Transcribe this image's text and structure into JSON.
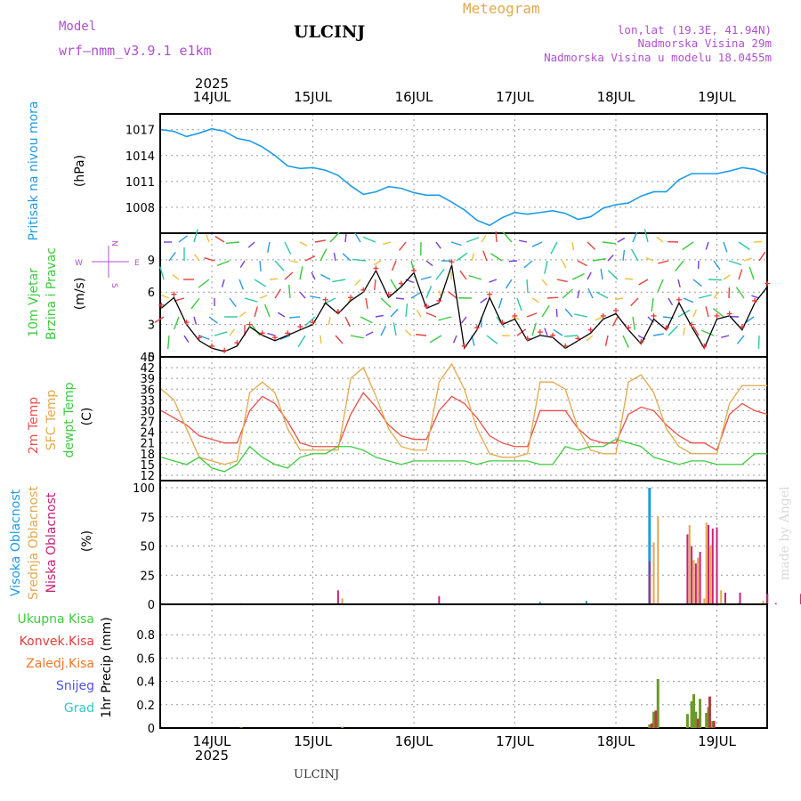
{
  "header": {
    "model_label": "Model",
    "model_name": "wrf–nmm_v3.9.1  e1km",
    "station": "ULCINJ",
    "product": "Meteogram",
    "coords": "lon,lat (19.3E, 41.94N)",
    "elevation": "Nadmorska Visina 29m",
    "model_elevation": "Nadmorska Visina u modelu 18.0455m"
  },
  "footer": {
    "station": "ULCINJ",
    "credit": "made by Angel"
  },
  "time_axis": {
    "year": "2025",
    "days": [
      "14JUL",
      "15JUL",
      "16JUL",
      "17JUL",
      "18JUL",
      "19JUL"
    ]
  },
  "colors": {
    "pressure": "#1e9be6",
    "wind_speed": "#000000",
    "gust_marker": "#e83a3a",
    "t2m": "#e8504a",
    "sfc": "#e3a84a",
    "dewpoint": "#3ccc3c",
    "high_cloud": "#1e9be6",
    "mid_cloud": "#e3a84a",
    "low_cloud": "#c8207a",
    "total_precip": "#3ccc3c",
    "conv_precip": "#e83a3a",
    "grid_scale_precip": "#f07828",
    "snow": "#5050e8",
    "graupel": "#30c8c8",
    "compass": "#b050d0"
  },
  "chart_data": [
    {
      "id": "pressure",
      "type": "line",
      "ylabel_main": "Pritisak na nivou mora",
      "unit": "(hPa)",
      "ylim": [
        1005,
        1018
      ],
      "yticks": [
        1008,
        1011,
        1014,
        1017
      ],
      "x_hours": [
        0,
        3,
        6,
        9,
        12,
        15,
        18,
        21,
        24,
        27,
        30,
        33,
        36,
        39,
        42,
        45,
        48,
        51,
        54,
        57,
        60,
        63,
        66,
        69,
        72,
        75,
        78,
        81,
        84,
        87,
        90,
        93,
        96,
        99,
        102,
        105,
        108,
        111,
        114,
        117,
        120,
        123,
        126,
        129,
        132,
        135,
        138,
        141,
        144
      ],
      "series": [
        {
          "values": [
            1017.0,
            1016.8,
            1016.2,
            1016.6,
            1017.1,
            1016.8,
            1016.0,
            1015.7,
            1015.0,
            1014.0,
            1012.8,
            1012.5,
            1012.6,
            1012.3,
            1011.7,
            1010.5,
            1009.5,
            1009.8,
            1010.4,
            1010.2,
            1009.7,
            1009.4,
            1009.4,
            1008.6,
            1007.7,
            1006.5,
            1005.9,
            1006.8,
            1007.4,
            1007.2,
            1007.4,
            1007.6,
            1007.3,
            1006.6,
            1006.9,
            1007.9,
            1008.3,
            1008.5,
            1009.3,
            1009.8,
            1009.8,
            1011.2,
            1011.9,
            1011.9,
            1011.9,
            1012.2,
            1012.6,
            1012.4,
            1011.8
          ]
        }
      ]
    },
    {
      "id": "wind",
      "type": "line",
      "ylabel_main": "10m Vjetar",
      "ylabel_sub": "Brzina i Pravac",
      "unit": "(m/s)",
      "compass": {
        "north": "N",
        "south": "S",
        "east": "E",
        "west": "W"
      },
      "ylim": [
        0,
        10.8
      ],
      "yticks": [
        0,
        3,
        6,
        9
      ],
      "x_hours": [
        0,
        3,
        6,
        9,
        12,
        15,
        18,
        21,
        24,
        27,
        30,
        33,
        36,
        39,
        42,
        45,
        48,
        51,
        54,
        57,
        60,
        63,
        66,
        69,
        72,
        75,
        78,
        81,
        84,
        87,
        90,
        93,
        96,
        99,
        102,
        105,
        108,
        111,
        114,
        117,
        120,
        123,
        126,
        129,
        132,
        135,
        138,
        141,
        144
      ],
      "series": [
        {
          "name": "speed",
          "values": [
            4.5,
            5.5,
            3.0,
            1.5,
            0.8,
            0.5,
            1.0,
            2.8,
            2.0,
            1.5,
            2.0,
            2.5,
            3.0,
            5.0,
            4.0,
            5.2,
            6.0,
            8.0,
            5.5,
            6.5,
            7.8,
            4.5,
            5.0,
            8.5,
            0.8,
            2.5,
            5.5,
            3.0,
            3.5,
            1.5,
            2.0,
            1.8,
            0.8,
            1.5,
            2.2,
            3.5,
            4.0,
            2.5,
            1.2,
            3.5,
            2.5,
            5.0,
            2.8,
            0.8,
            3.5,
            3.8,
            2.5,
            5.0,
            6.5
          ]
        },
        {
          "name": "gust",
          "values": [
            4.8,
            5.8,
            3.2,
            1.8,
            1.0,
            0.6,
            1.3,
            3.0,
            2.2,
            1.8,
            2.2,
            2.8,
            3.2,
            5.3,
            4.2,
            5.5,
            6.2,
            8.2,
            5.8,
            6.8,
            8.0,
            4.7,
            5.2,
            8.8,
            1.0,
            2.7,
            5.8,
            3.2,
            3.8,
            1.7,
            2.3,
            2.0,
            1.0,
            1.7,
            2.5,
            3.8,
            4.3,
            2.7,
            1.4,
            3.8,
            2.7,
            5.3,
            3.0,
            1.0,
            3.8,
            4.0,
            2.8,
            5.2,
            6.8
          ]
        }
      ]
    },
    {
      "id": "temperature",
      "type": "line",
      "ylabel_main": "2m Temp",
      "ylabel_sub": "SFC Temp",
      "ylabel_third": "dewpt Temp",
      "unit": "(C)",
      "ylim": [
        10.5,
        45
      ],
      "yticks": [
        12,
        15,
        18,
        21,
        24,
        27,
        30,
        33,
        36,
        39,
        42,
        45
      ],
      "x_hours": [
        0,
        3,
        6,
        9,
        12,
        15,
        18,
        21,
        24,
        27,
        30,
        33,
        36,
        39,
        42,
        45,
        48,
        51,
        54,
        57,
        60,
        63,
        66,
        69,
        72,
        75,
        78,
        81,
        84,
        87,
        90,
        93,
        96,
        99,
        102,
        105,
        108,
        111,
        114,
        117,
        120,
        123,
        126,
        129,
        132,
        135,
        138,
        141,
        144
      ],
      "series": [
        {
          "name": "2m",
          "values": [
            30,
            28,
            26,
            23,
            22,
            21,
            21,
            30,
            34,
            32,
            27,
            21,
            20,
            20,
            20,
            29,
            35,
            31,
            26,
            23,
            22,
            22,
            30,
            34,
            32,
            28,
            23,
            21,
            20,
            20,
            30,
            30,
            30,
            25,
            22,
            21,
            21,
            29,
            31,
            30,
            26,
            23,
            21,
            21,
            19,
            29,
            32,
            30,
            29
          ]
        },
        {
          "name": "SFC",
          "values": [
            36,
            33,
            25,
            17,
            16,
            15,
            16,
            35,
            38,
            35,
            25,
            19,
            19,
            19,
            19,
            39,
            42,
            34,
            25,
            20,
            19,
            19,
            38,
            43,
            36,
            25,
            18,
            17,
            17,
            18,
            38,
            38,
            36,
            25,
            19,
            18,
            18,
            38,
            40,
            35,
            25,
            20,
            18,
            18,
            18,
            32,
            37,
            37,
            37
          ]
        },
        {
          "name": "dewpt",
          "values": [
            17,
            16,
            15,
            17,
            14,
            13,
            15,
            20,
            17,
            15,
            14,
            17,
            18,
            18,
            20,
            20,
            19,
            17,
            16,
            15,
            16,
            16,
            16,
            16,
            16,
            15,
            16,
            16,
            16,
            16,
            15,
            15,
            20,
            19,
            20,
            20,
            22,
            21,
            20,
            17,
            16,
            15,
            16,
            16,
            15,
            15,
            15,
            18,
            18
          ]
        }
      ]
    },
    {
      "id": "clouds",
      "type": "bar",
      "ylabel_main": "Visoka Oblacnost",
      "ylabel_sub": "Srednja Oblacnost",
      "ylabel_third": "Niska Oblacnost",
      "unit": "(%)",
      "ylim": [
        0,
        100
      ],
      "yticks": [
        0,
        25,
        50,
        75,
        100
      ],
      "series": [
        {
          "name": "high",
          "points": [
            [
              90,
              2
            ],
            [
              101,
              3
            ],
            [
              116,
              100
            ],
            [
              132,
              1
            ]
          ]
        },
        {
          "name": "mid",
          "points": [
            [
              19,
              1
            ],
            [
              35,
              1
            ],
            [
              43,
              5
            ],
            [
              116,
              27
            ],
            [
              117,
              53
            ],
            [
              118,
              75
            ],
            [
              129,
              5
            ],
            [
              143,
              3
            ]
          ]
        },
        {
          "name": "low",
          "points": [
            [
              42,
              12
            ],
            [
              66,
              7
            ],
            [
              116,
              37
            ],
            [
              125,
              60
            ],
            [
              126,
              50
            ],
            [
              127,
              35
            ],
            [
              128,
              45
            ],
            [
              130,
              68
            ],
            [
              131,
              65
            ],
            [
              132,
              66
            ],
            [
              134,
              10
            ],
            [
              137,
              1
            ],
            [
              137.5,
              10
            ],
            [
              144,
              9
            ],
            [
              146,
              1
            ],
            [
              152,
              9
            ]
          ]
        },
        {
          "name": "mid2",
          "points": [
            [
              125.5,
              68
            ],
            [
              126.5,
              38
            ],
            [
              127.5,
              40
            ],
            [
              129.5,
              70
            ],
            [
              130.5,
              50
            ],
            [
              133,
              12
            ]
          ]
        }
      ]
    },
    {
      "id": "precip",
      "type": "bar",
      "ylabel_main": "1hr Precip (mm)",
      "legend": [
        "Ukupna Kisa",
        "Konvek.Kisa",
        "Zaledj.Kisa",
        "Snijeg",
        "Grad"
      ],
      "ylim": [
        0,
        1.0
      ],
      "yticks": [
        0,
        0.2,
        0.4,
        0.6,
        0.8
      ],
      "series": [
        {
          "name": "total",
          "points": [
            [
              19,
              0.005
            ],
            [
              43,
              0.01
            ],
            [
              116,
              0.03
            ],
            [
              117,
              0.14
            ],
            [
              118,
              0.42
            ],
            [
              125,
              0.12
            ],
            [
              126,
              0.23
            ],
            [
              126.5,
              0.29
            ],
            [
              127,
              0.14
            ],
            [
              128,
              0.25
            ],
            [
              129.5,
              0.13
            ],
            [
              130,
              0.18
            ],
            [
              131,
              0.06
            ]
          ]
        },
        {
          "name": "conv",
          "points": [
            [
              116.5,
              0.04
            ],
            [
              117.5,
              0.15
            ],
            [
              127.5,
              0.08
            ],
            [
              130.3,
              0.27
            ],
            [
              131.3,
              0.06
            ]
          ]
        }
      ]
    }
  ]
}
